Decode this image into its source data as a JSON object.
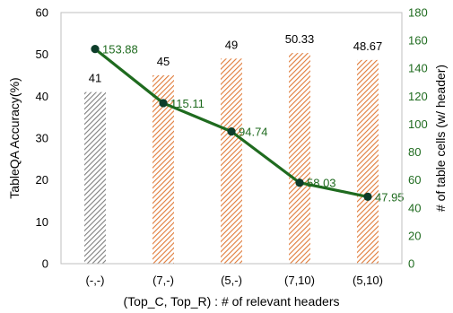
{
  "chart_data": {
    "type": "bar",
    "categories": [
      "(-,-)",
      "(7,-)",
      "(5,-)",
      "(7,10)",
      "(5,10)"
    ],
    "xlabel": "(Top_C, Top_R) : # of relevant headers",
    "ylabel": "TableQA Accuracy(%)",
    "y2label": "# of table cells (w/ header)",
    "ylim": [
      0,
      60
    ],
    "y2lim": [
      0,
      180
    ],
    "yticks": [
      0,
      10,
      20,
      30,
      40,
      50,
      60
    ],
    "y2ticks": [
      0,
      20,
      40,
      60,
      80,
      100,
      120,
      140,
      160,
      180
    ],
    "grid": false,
    "series": [
      {
        "type": "bar",
        "axis": "left",
        "values": [
          41,
          45,
          49,
          50.33,
          48.67
        ],
        "labels": [
          "41",
          "45",
          "49",
          "50.33",
          "48.67"
        ],
        "colors": [
          "#7f7f7f",
          "#e07b39",
          "#e07b39",
          "#e07b39",
          "#e07b39"
        ]
      },
      {
        "type": "line",
        "axis": "right",
        "values": [
          153.88,
          115.11,
          94.74,
          58.03,
          47.95
        ],
        "labels": [
          "153.88",
          "115.11",
          "94.74",
          "58.03",
          "47.95"
        ],
        "color": "#1f6b1f"
      }
    ]
  }
}
